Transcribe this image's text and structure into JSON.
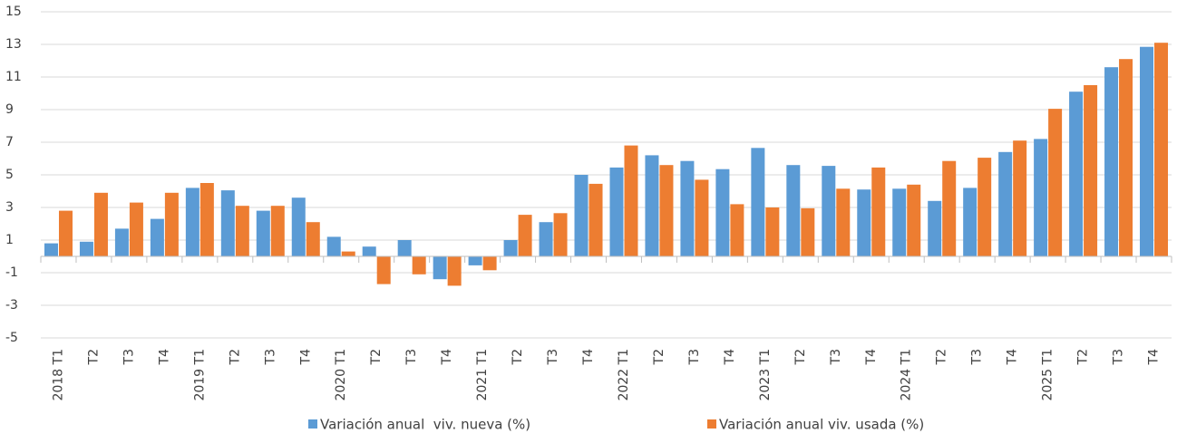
{
  "chart_data": {
    "type": "bar",
    "categories": [
      "2018 T1",
      "T2",
      "T3",
      "T4",
      "2019 T1",
      "T2",
      "T3",
      "T4",
      "2020 T1",
      "T2",
      "T3",
      "T4",
      "2021 T1",
      "T2",
      "T3",
      "T4",
      "2022 T1",
      "T2",
      "T3",
      "T4",
      "2023 T1",
      "T2",
      "T3",
      "T4",
      "2024 T1",
      "T2",
      "T3",
      "T4",
      "2025 T1",
      "T2",
      "T3",
      "T4"
    ],
    "series": [
      {
        "name": "Variación anual  viv. nueva (%)",
        "color": "#5b9bd5",
        "values": [
          0.8,
          0.9,
          1.7,
          2.3,
          4.2,
          4.05,
          2.8,
          3.6,
          1.2,
          0.6,
          1.0,
          -1.4,
          -0.55,
          1.0,
          2.1,
          5.0,
          5.45,
          6.2,
          5.85,
          5.35,
          6.65,
          5.6,
          5.55,
          4.1,
          4.15,
          3.4,
          4.2,
          6.4,
          7.2,
          10.1,
          11.6,
          12.85
        ]
      },
      {
        "name": "Variación anual viv. usada (%)",
        "color": "#ed7d31",
        "values": [
          2.8,
          3.9,
          3.3,
          3.9,
          4.5,
          3.1,
          3.1,
          2.1,
          0.3,
          -1.7,
          -1.1,
          -1.8,
          -0.85,
          2.55,
          2.65,
          4.45,
          6.8,
          5.6,
          4.7,
          3.2,
          3.0,
          2.95,
          4.15,
          5.45,
          4.4,
          5.85,
          6.05,
          7.1,
          9.05,
          10.5,
          12.1,
          13.1
        ]
      }
    ],
    "ylim": [
      -5,
      15
    ],
    "yticks": [
      -5,
      -3,
      -1,
      1,
      3,
      5,
      7,
      9,
      11,
      13,
      15
    ],
    "grid": true
  }
}
